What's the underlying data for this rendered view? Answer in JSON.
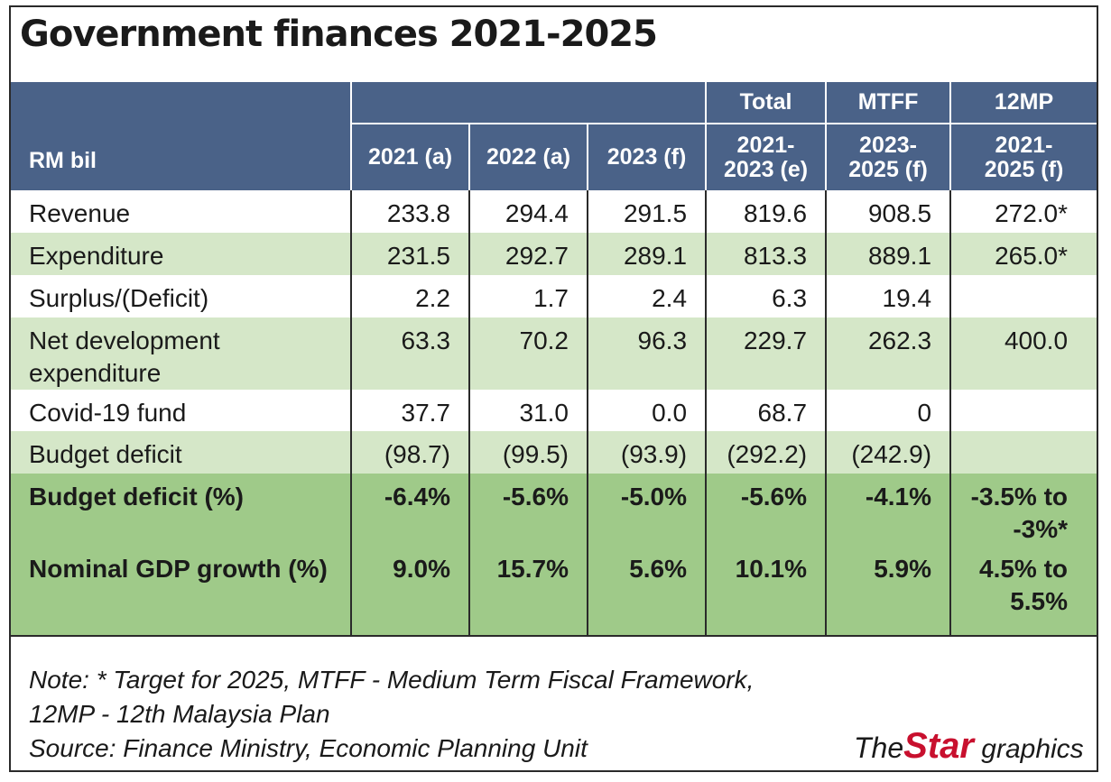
{
  "title": "Government finances 2021-2025",
  "header": {
    "unit_label": "RM bil",
    "groups": [
      "Total",
      "MTFF",
      "12MP"
    ],
    "columns": [
      "2021 (a)",
      "2022 (a)",
      "2023 (f)",
      "2021-\n2023 (e)",
      "2023-\n2025 (f)",
      "2021-\n2025 (f)"
    ]
  },
  "rows": [
    {
      "label": "Revenue",
      "values": [
        "233.8",
        "294.4",
        "291.5",
        "819.6",
        "908.5",
        "272.0*"
      ]
    },
    {
      "label": "Expenditure",
      "values": [
        "231.5",
        "292.7",
        "289.1",
        "813.3",
        "889.1",
        "265.0*"
      ]
    },
    {
      "label": "Surplus/(Deficit)",
      "values": [
        "2.2",
        "1.7",
        "2.4",
        "6.3",
        "19.4",
        ""
      ]
    },
    {
      "label": "Net development\nexpenditure",
      "values": [
        "63.3",
        "70.2",
        "96.3",
        "229.7",
        "262.3",
        "400.0"
      ]
    },
    {
      "label": "Covid-19 fund",
      "values": [
        "37.7",
        "31.0",
        "0.0",
        "68.7",
        "0",
        ""
      ]
    },
    {
      "label": "Budget deficit",
      "values": [
        "(98.7)",
        "(99.5)",
        "(93.9)",
        "(292.2)",
        "(242.9)",
        ""
      ]
    },
    {
      "label": "Budget deficit (%)",
      "values": [
        "-6.4%",
        "-5.6%",
        "-5.0%",
        "-5.6%",
        "-4.1%",
        "-3.5% to\n-3%*"
      ]
    },
    {
      "label": "Nominal GDP growth (%)",
      "values": [
        "9.0%",
        "15.7%",
        "5.6%",
        "10.1%",
        "5.9%",
        "4.5% to\n5.5%"
      ]
    }
  ],
  "note": {
    "line1": "Note: * Target for 2025, MTFF - Medium Term Fiscal Framework,",
    "line2": "12MP - 12th Malaysia Plan",
    "line3": "Source: Finance Ministry, Economic Planning Unit"
  },
  "credit": {
    "the": "The",
    "star": "Star",
    "graphics": " graphics"
  },
  "colors": {
    "header_bg": "#4a6288",
    "light_green": "#d5e7c8",
    "dark_green": "#9fca89",
    "negative_text": "#b03a2e",
    "brand_red": "#c8102e"
  },
  "chart_data": {
    "type": "table",
    "title": "Government finances 2021-2025",
    "columns": [
      "RM bil",
      "2021 (a)",
      "2022 (a)",
      "2023 (f)",
      "Total 2021-2023 (e)",
      "MTFF 2023-2025 (f)",
      "12MP 2021-2025 (f)"
    ],
    "rows": [
      [
        "Revenue",
        "233.8",
        "294.4",
        "291.5",
        "819.6",
        "908.5",
        "272.0*"
      ],
      [
        "Expenditure",
        "231.5",
        "292.7",
        "289.1",
        "813.3",
        "889.1",
        "265.0*"
      ],
      [
        "Surplus/(Deficit)",
        "2.2",
        "1.7",
        "2.4",
        "6.3",
        "19.4",
        ""
      ],
      [
        "Net development expenditure",
        "63.3",
        "70.2",
        "96.3",
        "229.7",
        "262.3",
        "400.0"
      ],
      [
        "Covid-19 fund",
        "37.7",
        "31.0",
        "0.0",
        "68.7",
        "0",
        ""
      ],
      [
        "Budget deficit",
        "(98.7)",
        "(99.5)",
        "(93.9)",
        "(292.2)",
        "(242.9)",
        ""
      ],
      [
        "Budget deficit (%)",
        "-6.4%",
        "-5.6%",
        "-5.0%",
        "-5.6%",
        "-4.1%",
        "-3.5% to -3%*"
      ],
      [
        "Nominal GDP growth (%)",
        "9.0%",
        "15.7%",
        "5.6%",
        "10.1%",
        "5.9%",
        "4.5% to 5.5%"
      ]
    ]
  }
}
